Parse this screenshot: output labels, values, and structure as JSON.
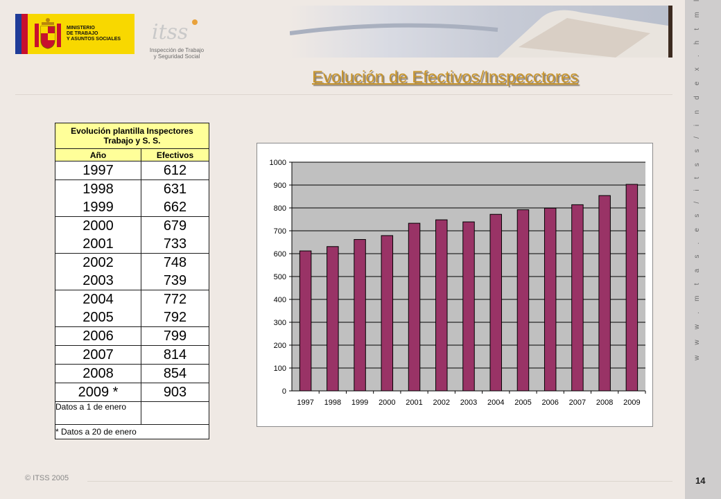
{
  "header": {
    "title": "Evolución de Efectivos/Inspecctores",
    "ministry_logo_text": "MINISTERIO\nDE TRABAJO\nY ASUNTOS SOCIALES",
    "itss_logo_mark": "itss",
    "itss_logo_text": "Inspección de Trabajo\ny Seguridad Social"
  },
  "footer": {
    "copyright": "© ITSS 2005",
    "page_number": "14",
    "vertical_url": "w w w . m t a s . e s / i t s s / i n d e x . h t m l"
  },
  "table": {
    "title": "Evolución plantilla Inspectores Trabajo y S. S.",
    "col_year": "Año",
    "col_value": "Efectivos",
    "rows": [
      {
        "year": "1997",
        "value": "612"
      },
      {
        "year": "1998",
        "value": "631"
      },
      {
        "year": "1999",
        "value": "662"
      },
      {
        "year": "2000",
        "value": "679"
      },
      {
        "year": "2001",
        "value": "733"
      },
      {
        "year": "2002",
        "value": "748"
      },
      {
        "year": "2003",
        "value": "739"
      },
      {
        "year": "2004",
        "value": "772"
      },
      {
        "year": "2005",
        "value": "792"
      },
      {
        "year": "2006",
        "value": "799"
      },
      {
        "year": "2007",
        "value": "814"
      },
      {
        "year": "2008",
        "value": "854"
      },
      {
        "year": "2009 *",
        "value": "903"
      }
    ],
    "note1": "Datos a 1 de enero",
    "note2": "* Datos a 20 de enero"
  },
  "chart_data": {
    "type": "bar",
    "categories": [
      "1997",
      "1998",
      "1999",
      "2000",
      "2001",
      "2002",
      "2003",
      "2004",
      "2005",
      "2006",
      "2007",
      "2008",
      "2009"
    ],
    "values": [
      612,
      631,
      662,
      679,
      733,
      748,
      739,
      772,
      792,
      799,
      814,
      854,
      903
    ],
    "ylim": [
      0,
      1000
    ],
    "yticks": [
      0,
      100,
      200,
      300,
      400,
      500,
      600,
      700,
      800,
      900,
      1000
    ],
    "bar_color": "#993366",
    "plot_background": "#c0c0c0",
    "grid": true,
    "legend": "none"
  }
}
